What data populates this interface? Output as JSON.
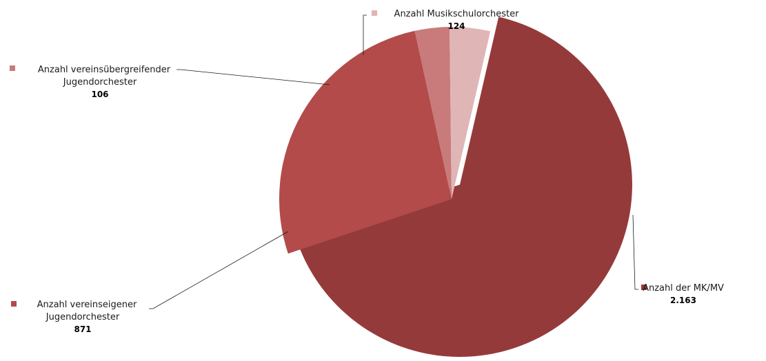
{
  "chart_data": {
    "type": "pie",
    "title": "",
    "slices": [
      {
        "name": "Anzahl der MK/MV",
        "value": 2163,
        "value_label": "2.163",
        "color": "#953a3b",
        "label_lines": [
          "Anzahl der MK/MV"
        ]
      },
      {
        "name": "Anzahl vereinseigener Jugendorchester",
        "value": 871,
        "value_label": "871",
        "color": "#b34b4b",
        "label_lines": [
          "Anzahl vereinseigener",
          "Jugendorchester"
        ]
      },
      {
        "name": "Anzahl vereinsübergreifender Jugendorchester",
        "value": 106,
        "value_label": "106",
        "color": "#c97a7a",
        "label_lines": [
          "Anzahl vereinsübergreifender",
          "Jugendorchester"
        ]
      },
      {
        "name": "Anzahl Musikschulorchester",
        "value": 124,
        "value_label": "124",
        "color": "#e0b5b5",
        "label_lines": [
          "Anzahl Musikschulorchester"
        ]
      }
    ],
    "legend": "none",
    "labels": "outside-with-leader-lines",
    "exploded": true
  }
}
